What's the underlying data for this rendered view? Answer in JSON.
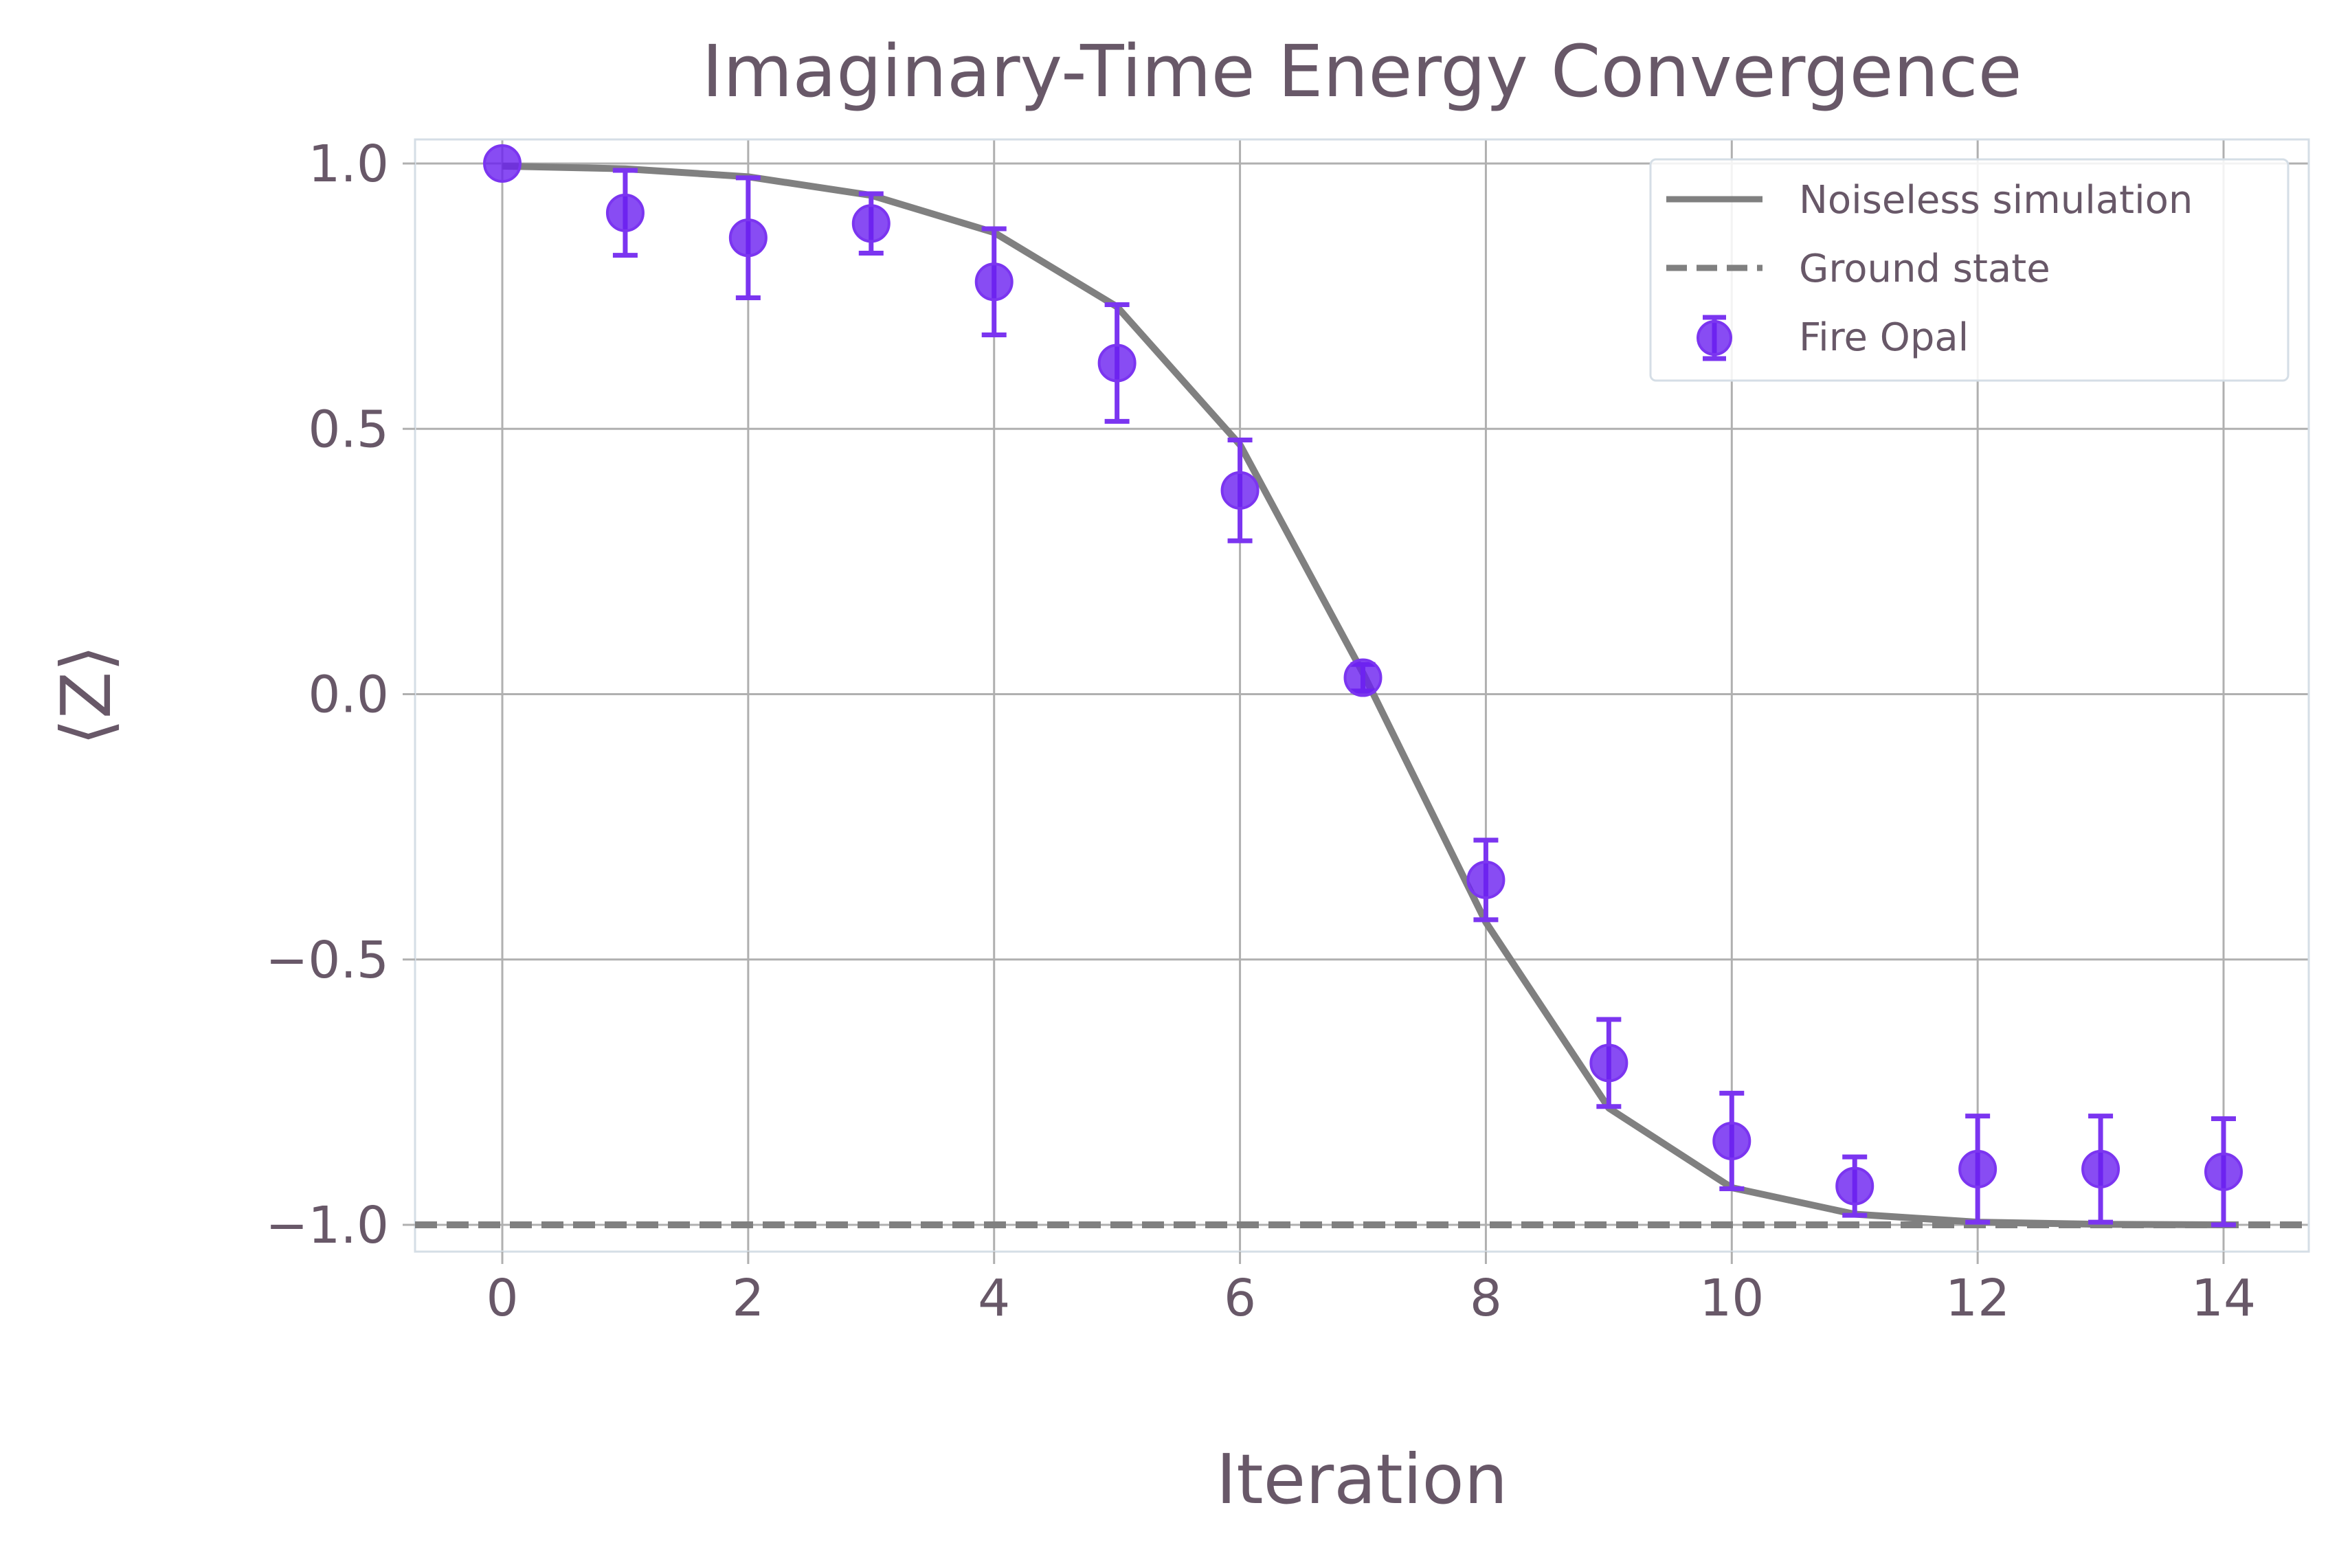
{
  "chart_data": {
    "type": "line",
    "title": "Imaginary-Time Energy Convergence",
    "xlabel": "Iteration",
    "ylabel": "⟨Z⟩",
    "xlim": [
      -0.7,
      14.7
    ],
    "ylim": [
      -1.05,
      1.05
    ],
    "xticks": [
      0,
      2,
      4,
      6,
      8,
      10,
      12,
      14
    ],
    "xtick_labels": [
      "0",
      "2",
      "4",
      "6",
      "8",
      "10",
      "12",
      "14"
    ],
    "yticks": [
      1.0,
      0.5,
      0.0,
      -0.5,
      -1.0
    ],
    "ytick_labels": [
      "1.0",
      "0.5",
      "0.0",
      "−0.5",
      "−1.0"
    ],
    "grid": true,
    "legend_position": "top-right",
    "x": [
      0,
      1,
      2,
      3,
      4,
      5,
      6,
      7,
      8,
      9,
      10,
      11,
      12,
      13,
      14
    ],
    "series": [
      {
        "name": "Noiseless simulation",
        "style": "solid",
        "color": "#808080",
        "values": [
          0.995,
          0.99,
          0.975,
          0.94,
          0.87,
          0.73,
          0.47,
          0.04,
          -0.43,
          -0.78,
          -0.93,
          -0.98,
          -0.995,
          -0.999,
          -1.0
        ]
      },
      {
        "name": "Ground state",
        "style": "dashed",
        "color": "#808080",
        "values": [
          -1.0,
          -1.0,
          -1.0,
          -1.0,
          -1.0,
          -1.0,
          -1.0,
          -1.0,
          -1.0,
          -1.0,
          -1.0,
          -1.0,
          -1.0,
          -1.0,
          -1.0
        ]
      },
      {
        "name": "Fire Opal",
        "style": "errorbar",
        "color": "#6a1ff0",
        "values": [
          1.0,
          0.907,
          0.86,
          0.887,
          0.777,
          0.624,
          0.384,
          0.031,
          -0.35,
          -0.695,
          -0.842,
          -0.927,
          -0.895,
          -0.895,
          -0.9
        ],
        "errors": [
          0.0,
          0.08,
          0.113,
          0.056,
          0.1,
          0.11,
          0.095,
          0.025,
          0.075,
          0.082,
          0.09,
          0.055,
          0.1,
          0.1,
          0.1
        ]
      }
    ]
  }
}
